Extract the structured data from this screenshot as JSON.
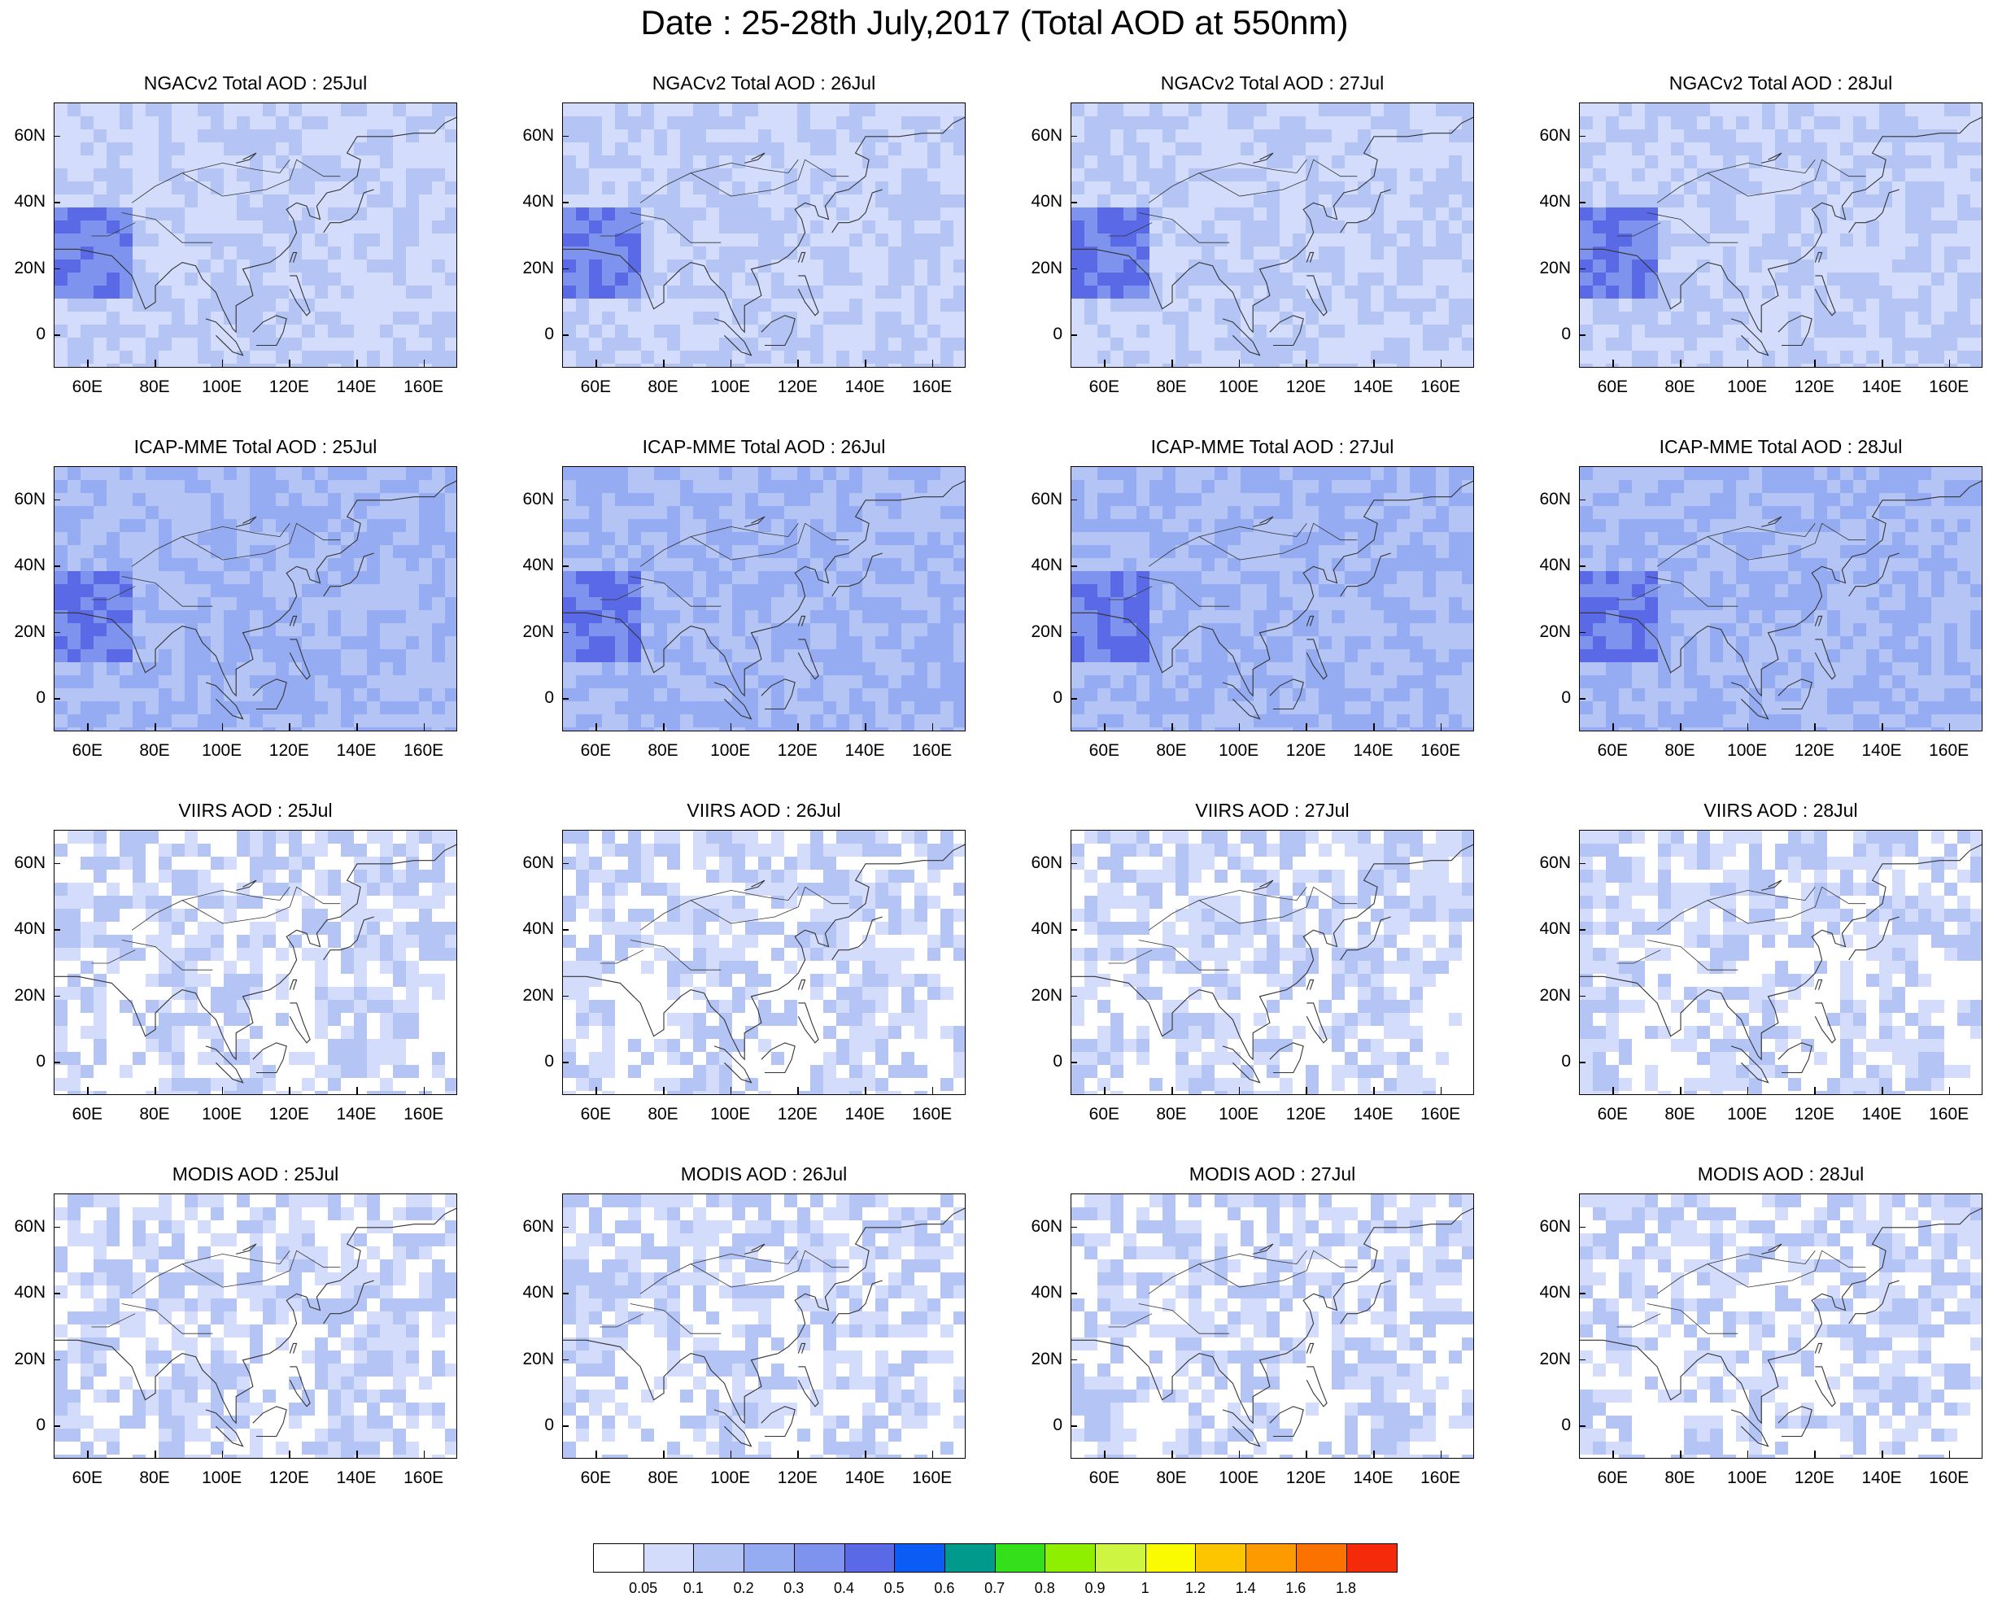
{
  "title": "Date : 25-28th July,2017 (Total AOD at 550nm)",
  "axes": {
    "lat_labels": [
      "60N",
      "40N",
      "20N",
      "0"
    ],
    "lon_labels": [
      "60E",
      "80E",
      "100E",
      "120E",
      "140E",
      "160E"
    ]
  },
  "rows": [
    {
      "id": "ngacv2",
      "panels": [
        {
          "title": "NGACv2 Total AOD : 25Jul"
        },
        {
          "title": "NGACv2 Total AOD : 26Jul"
        },
        {
          "title": "NGACv2 Total AOD : 27Jul"
        },
        {
          "title": "NGACv2 Total AOD : 28Jul"
        }
      ]
    },
    {
      "id": "icap-mme",
      "panels": [
        {
          "title": "ICAP-MME Total AOD : 25Jul"
        },
        {
          "title": "ICAP-MME Total AOD : 26Jul"
        },
        {
          "title": "ICAP-MME Total AOD : 27Jul"
        },
        {
          "title": "ICAP-MME Total AOD : 28Jul"
        }
      ]
    },
    {
      "id": "viirs",
      "panels": [
        {
          "title": "VIIRS AOD : 25Jul"
        },
        {
          "title": "VIIRS AOD : 26Jul"
        },
        {
          "title": "VIIRS AOD : 27Jul"
        },
        {
          "title": "VIIRS AOD : 28Jul"
        }
      ]
    },
    {
      "id": "modis",
      "panels": [
        {
          "title": "MODIS AOD : 25Jul"
        },
        {
          "title": "MODIS AOD : 26Jul"
        },
        {
          "title": "MODIS AOD : 27Jul"
        },
        {
          "title": "MODIS AOD : 28Jul"
        }
      ]
    }
  ],
  "colorbar": {
    "labels": [
      "0.05",
      "0.1",
      "0.2",
      "0.3",
      "0.4",
      "0.5",
      "0.6",
      "0.7",
      "0.8",
      "0.9",
      "1",
      "1.2",
      "1.4",
      "1.6",
      "1.8"
    ],
    "colors": [
      "#ffffff",
      "#d3dcfa",
      "#b3c4f5",
      "#95acf2",
      "#7d93ed",
      "#5a6ae6",
      "#0a5cf5",
      "#009a8c",
      "#33e01a",
      "#8fef00",
      "#cdf542",
      "#fbfb00",
      "#fdc400",
      "#fd9a00",
      "#fb7200",
      "#f52a0a"
    ]
  }
}
